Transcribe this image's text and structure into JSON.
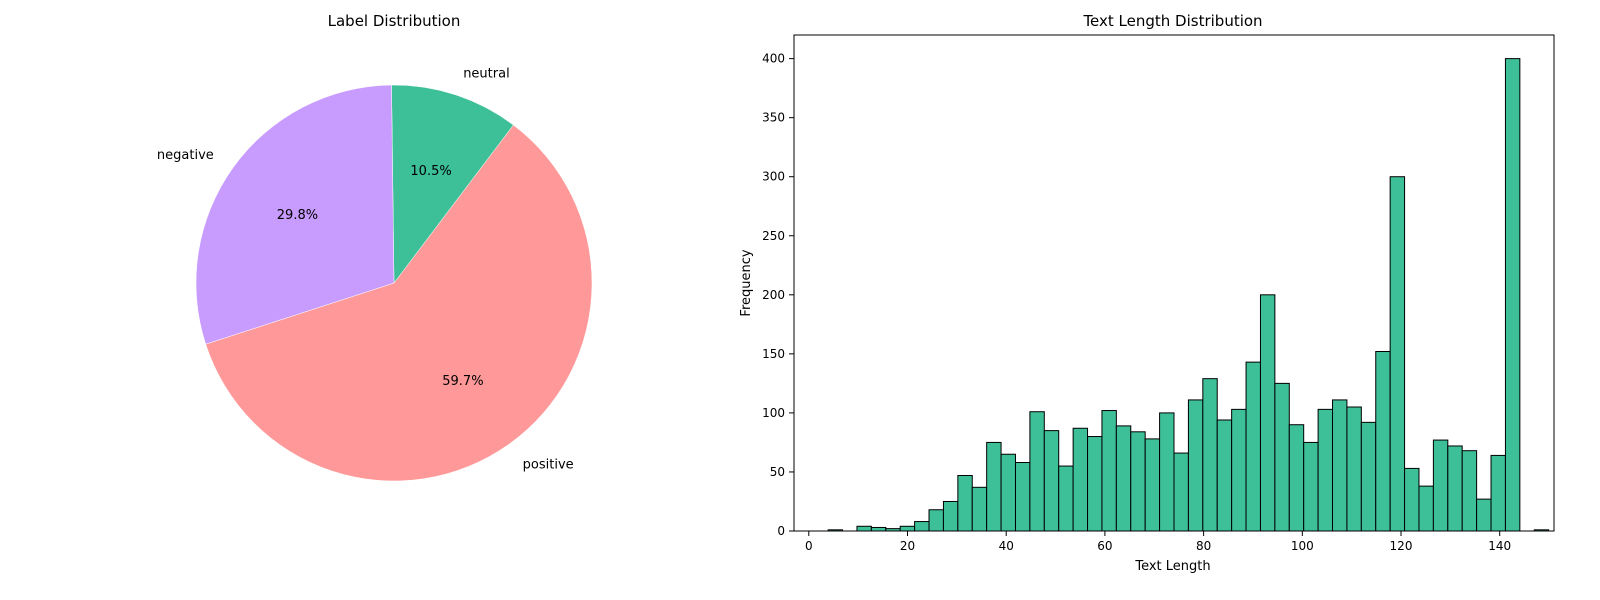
{
  "chart_data": [
    {
      "type": "pie",
      "title": "Label Distribution",
      "labels": [
        "positive",
        "neutral",
        "negative"
      ],
      "values": [
        59.7,
        10.5,
        29.8
      ],
      "autopct_labels": [
        "59.7%",
        "10.5%",
        "29.8%"
      ],
      "colors": [
        "#ff9999",
        "#3dbf97",
        "#c89bff"
      ]
    },
    {
      "type": "bar",
      "title": "Text Length Distribution",
      "xlabel": "Text Length",
      "ylabel": "Frequency",
      "xlim": [
        -3,
        151
      ],
      "ylim": [
        0,
        420
      ],
      "xticks": [
        0,
        20,
        40,
        60,
        80,
        100,
        120,
        140
      ],
      "yticks": [
        0,
        50,
        100,
        150,
        200,
        250,
        300,
        350,
        400
      ],
      "bar_color": "#3dbf97",
      "bin_start": 1,
      "bin_width": 2.92,
      "counts": [
        0,
        1,
        0,
        4,
        3,
        2,
        4,
        8,
        18,
        25,
        47,
        37,
        75,
        65,
        58,
        101,
        85,
        55,
        87,
        80,
        102,
        89,
        84,
        78,
        100,
        66,
        111,
        129,
        94,
        103,
        143,
        200,
        125,
        90,
        75,
        103,
        111,
        105,
        92,
        152,
        300,
        53,
        38,
        77,
        72,
        68,
        27,
        64,
        400,
        0,
        1
      ]
    }
  ]
}
